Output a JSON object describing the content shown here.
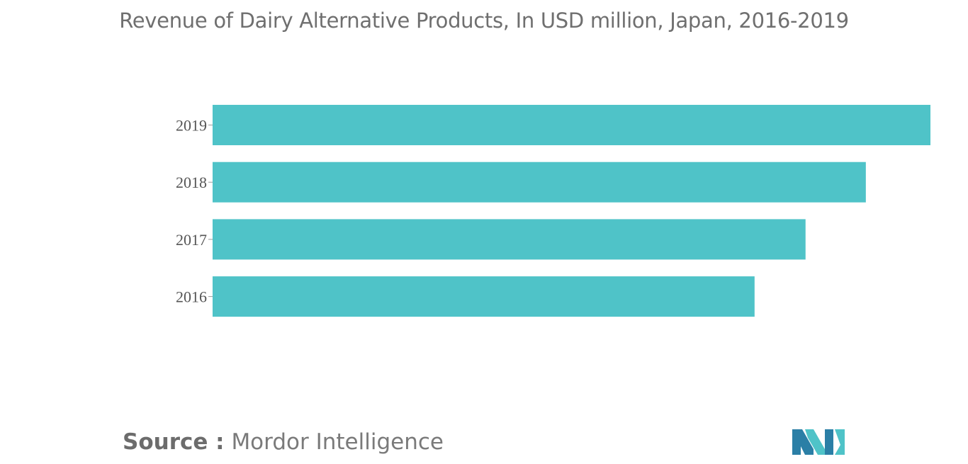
{
  "chart_data": {
    "type": "bar",
    "orientation": "horizontal",
    "title": "Revenue of Dairy Alternative Products, In USD million, Japan, 2016-2019",
    "categories": [
      "2019",
      "2018",
      "2017",
      "2016"
    ],
    "values": [
      100,
      91,
      82.6,
      75.5
    ],
    "xlabel": "",
    "ylabel": "",
    "xlim": [
      0,
      100
    ],
    "grid": false,
    "legend": "none",
    "bar_color": "#4fc3c8"
  },
  "footer": {
    "source_label": "Source :",
    "source_name": "Mordor Intelligence"
  },
  "logo": {
    "icon": "mordor-intelligence-logo",
    "colors": [
      "#2b7fa6",
      "#4fc3c8"
    ]
  }
}
